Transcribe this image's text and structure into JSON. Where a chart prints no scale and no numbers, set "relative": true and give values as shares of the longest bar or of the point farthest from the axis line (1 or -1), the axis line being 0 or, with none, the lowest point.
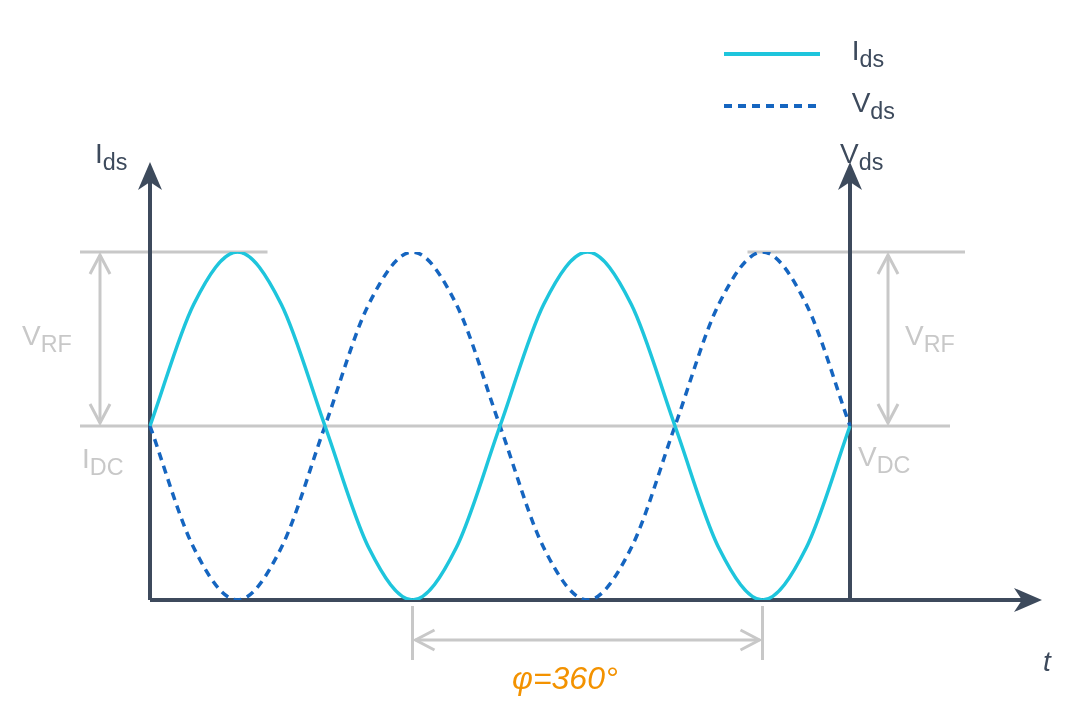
{
  "chart_data": {
    "type": "line",
    "relative": true,
    "ylabel": "I$_{ds}$",
    "y2label": "V$_{ds}$",
    "legend": "top right",
    "marker": "none",
    "categories": [
      null,
      null,
      null,
      null,
      null,
      null,
      null,
      null,
      null,
      null,
      null,
      null,
      null,
      null,
      null,
      null,
      null
    ],
    "series": [
      {
        "name": "I$_{ds}$",
        "color": "#1ec5dc",
        "line_style": "solid",
        "values": [
          0.5,
          0.85,
          1,
          0.85,
          0.5,
          0.15,
          0,
          0.15,
          0.5,
          0.85,
          1,
          0.85,
          0.5,
          0.15,
          0,
          0.15,
          0.5
        ]
      },
      {
        "name": "V$_{ds}$",
        "color": "#1565c0",
        "line_style": "dashed",
        "values": [
          0.5,
          0.15,
          0,
          0.15,
          0.5,
          0.85,
          1,
          0.85,
          0.5,
          0.15,
          0,
          0.15,
          0.5,
          0.85,
          1,
          0.85,
          0.5
        ]
      }
    ],
    "ref_lines": [
      {
        "axis": "y",
        "value": 0.5,
        "label": "I$_{DC}$",
        "color": "#c8c8c8"
      },
      {
        "axis": "y",
        "value": 1,
        "color": "#c8c8c8"
      }
    ],
    "annotations": [
      "V$_{RF}$",
      "V$_{RF}$",
      "V$_{DC}$",
      "φ=360°",
      "t"
    ]
  }
}
